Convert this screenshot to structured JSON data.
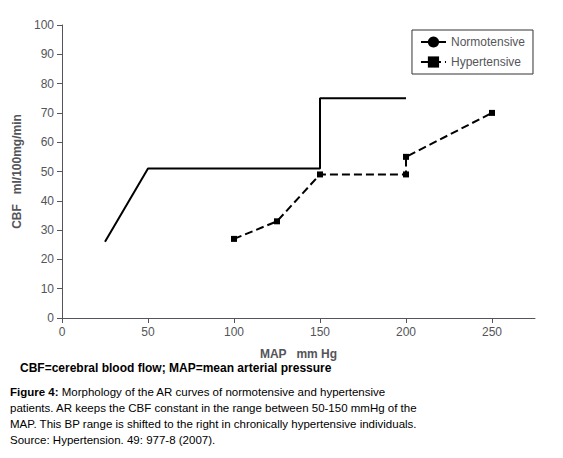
{
  "chart_data": {
    "type": "line",
    "xlabel": "MAP   mm Hg",
    "ylabel": "CBF   ml/100mg/min",
    "series": [
      {
        "name": "Normotensive",
        "color": "#000000",
        "line_style": "solid",
        "marker": "none",
        "x": [
          25,
          50,
          150,
          150,
          200
        ],
        "values": [
          26,
          51,
          51,
          75,
          75
        ]
      },
      {
        "name": "Hypertensive",
        "color": "#000000",
        "line_style": "dashed",
        "marker": "square",
        "x": [
          100,
          125,
          150,
          200,
          200,
          250
        ],
        "values": [
          27,
          33,
          49,
          49,
          55,
          70
        ]
      }
    ],
    "xlim": [
      0,
      275
    ],
    "ylim": [
      0,
      100
    ],
    "xticks": [
      0,
      50,
      100,
      150,
      200,
      250
    ],
    "yticks": [
      0,
      10,
      20,
      30,
      40,
      50,
      60,
      70,
      80,
      90,
      100
    ],
    "grid": false,
    "legend": "upper right",
    "annotations": [
      "CBF=cerebral blood flow; MAP=mean arterial pressure",
      "Figure 4:",
      "Morphology of the AR curves of normotensive and hypertensive\npatients. AR keeps the CBF constant in the range between 50-150 mmHg of the\nMAP. This BP range is shifted to the right in chronically hypertensive individuals.\nSource: Hypertension. 49: 977-8 (2007)."
    ]
  }
}
